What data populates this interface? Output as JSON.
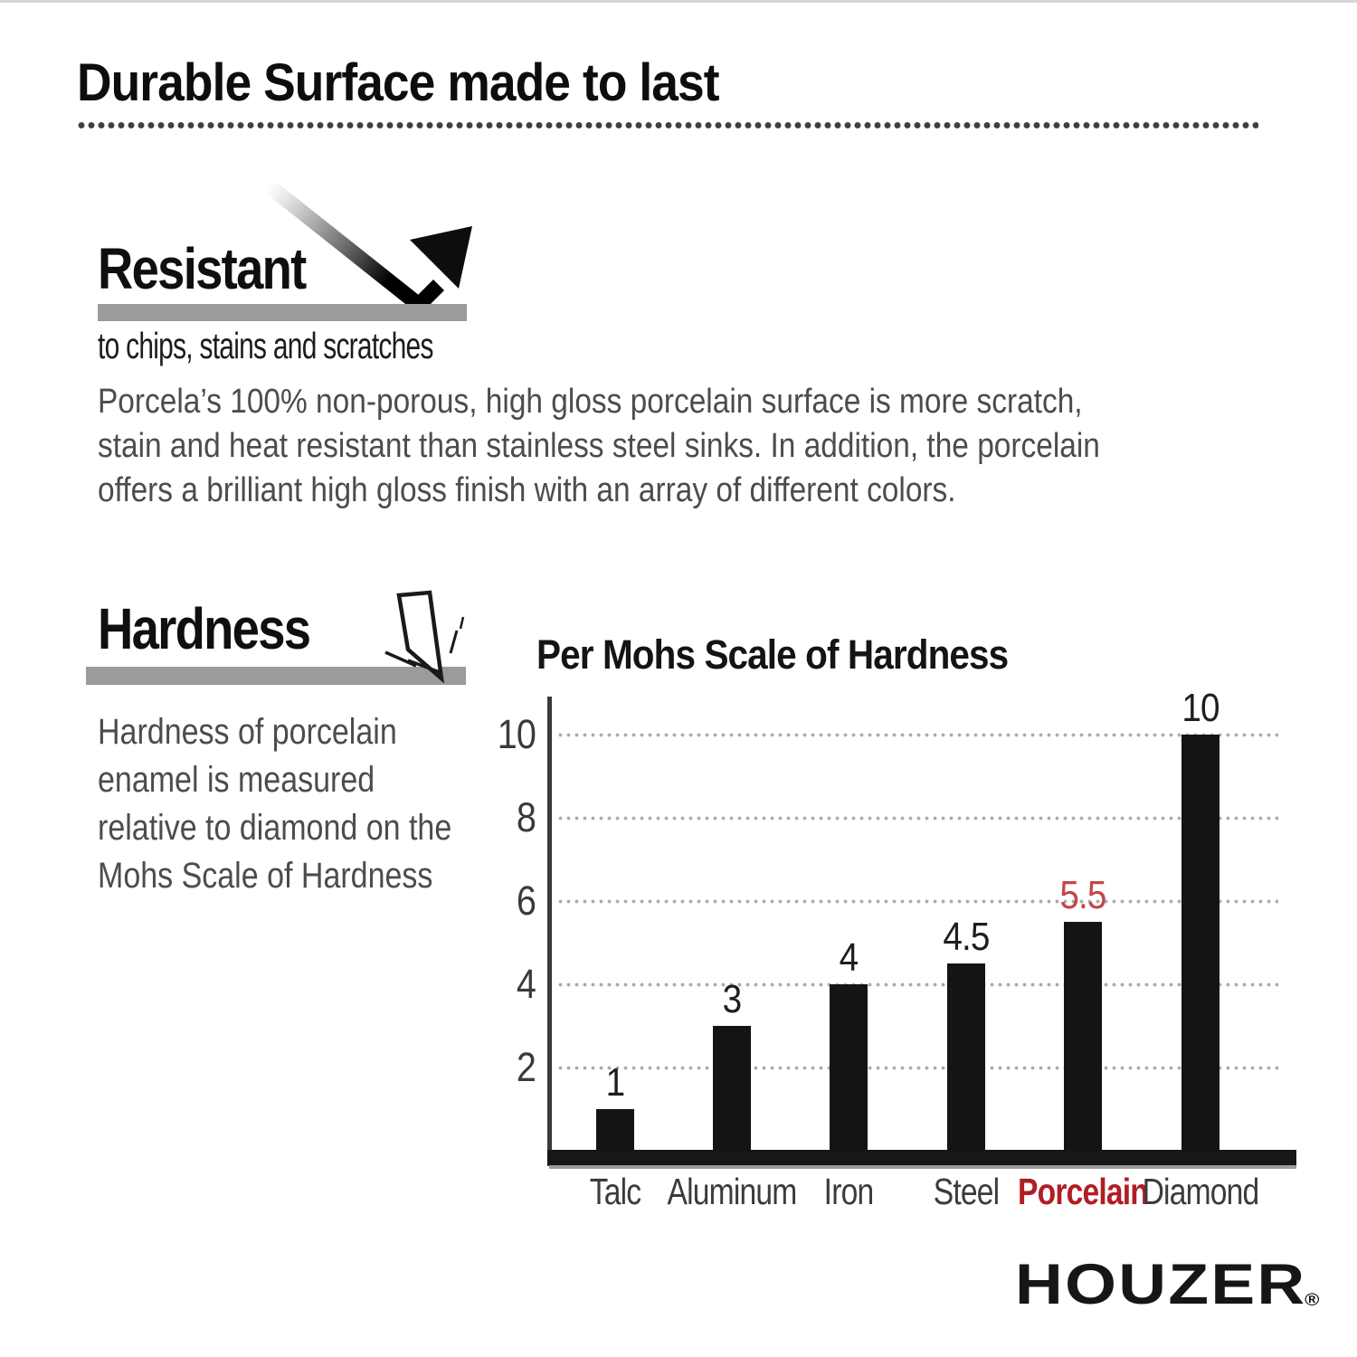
{
  "header": {
    "title": "Durable Surface made to last"
  },
  "resistant": {
    "heading": "Resistant",
    "tagline": "to chips, stains and scratches",
    "body_lines": [
      "Porcela’s 100% non-porous, high gloss porcelain surface is more scratch,",
      "stain and heat resistant than stainless steel sinks. In addition, the porcelain",
      "offers a brilliant high gloss finish with an array of different colors."
    ]
  },
  "hardness": {
    "heading": "Hardness",
    "body_lines": [
      "Hardness of porcelain",
      "enamel is measured",
      "relative to diamond on the",
      "Mohs Scale of Hardness"
    ]
  },
  "chart_data": {
    "type": "bar",
    "title": "Per Mohs Scale of Hardness",
    "categories": [
      "Talc",
      "Aluminum",
      "Iron",
      "Steel",
      "Porcelain",
      "Diamond"
    ],
    "values": [
      1,
      3,
      4,
      4.5,
      5.5,
      10
    ],
    "bar_value_labels": [
      "1",
      "3",
      "4",
      "4.5",
      "5.5",
      "10"
    ],
    "highlight_category": "Porcelain",
    "xlabel": "",
    "ylabel": "",
    "yticks": [
      2,
      4,
      6,
      8,
      10
    ],
    "ylim": [
      0,
      10.8
    ],
    "grid": "horizontal-dotted",
    "legend": "none",
    "colors": {
      "bar": "#141414",
      "value_label": "#1e1e1e",
      "highlight_value": "#c4464c",
      "category_label": "#3b3b3b",
      "highlight_category_label": "#b01e24",
      "axis": "#3a3a3a",
      "gridline": "#ababab"
    }
  },
  "footer": {
    "brand": "HOUZER",
    "registered": "®"
  },
  "colors": {
    "gray_underline_bar": "#9b9b9b",
    "heading_text": "#0f0f0f",
    "body_text": "#4c4c4c",
    "rule_dots": "#3f3f3f"
  }
}
